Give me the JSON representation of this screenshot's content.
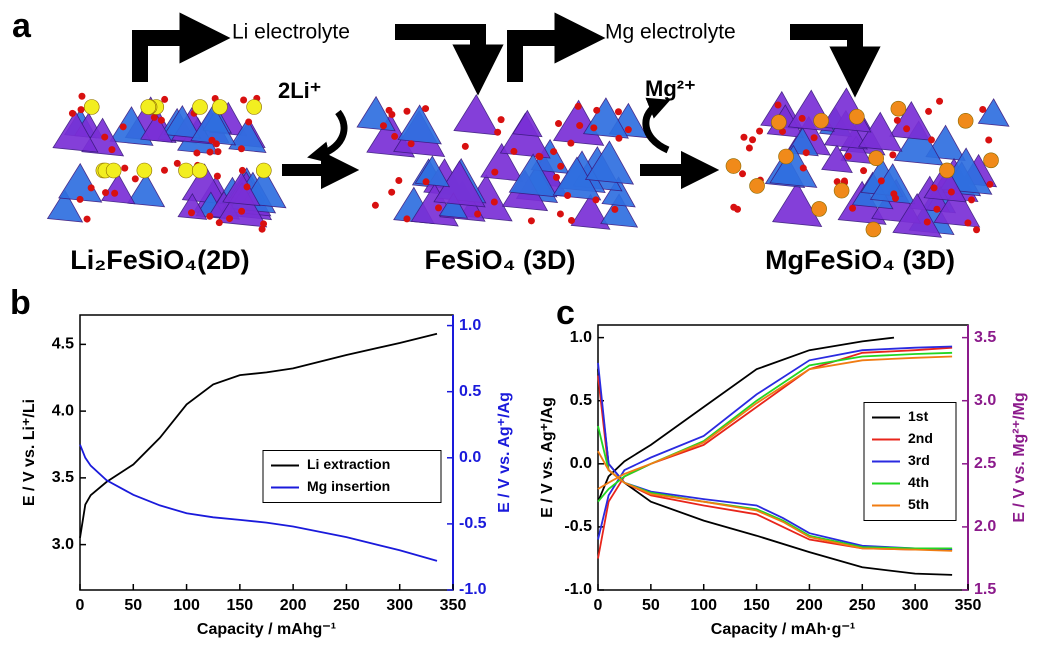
{
  "schematic": {
    "panel_label": "a",
    "top_labels": [
      "Li electrolyte",
      "Mg electrolyte"
    ],
    "ion_labels": [
      "2Li⁺",
      "Mg²⁺"
    ],
    "compounds": [
      "Li₂FeSiO₄(2D)",
      "FeSiO₄ (3D)",
      "MgFeSiO₄ (3D)"
    ]
  },
  "chart_data": [
    {
      "type": "line",
      "panel_label": "b",
      "x_label": "Capacity / mAhg⁻¹",
      "y_label": "E / V vs. Li⁺/Li",
      "y2_label": "E / V vs. Ag⁺/Ag",
      "y2_color": "#1a1adb",
      "xlim": [
        0,
        350
      ],
      "xticks": [
        0,
        50,
        100,
        150,
        200,
        250,
        300,
        350
      ],
      "ylim": [
        2.66,
        4.72
      ],
      "yticks": [
        {
          "value": 3,
          "label": "3.0"
        },
        3.5,
        {
          "value": 4,
          "label": "4.0"
        },
        4.5
      ],
      "y2lim": [
        -1.0,
        1.08
      ],
      "y2ticks": [
        {
          "value": -1,
          "label": "-1.0"
        },
        -0.5,
        {
          "value": 0,
          "label": "0.0"
        },
        0.5,
        {
          "value": 1,
          "label": "1.0"
        }
      ],
      "legend": "center right",
      "grid": false,
      "x": [
        0,
        5,
        10,
        25,
        50,
        75,
        100,
        125,
        150,
        175,
        200,
        250,
        300,
        335
      ],
      "series": [
        {
          "name": "Li extraction",
          "color": "#000000",
          "values": [
            3.05,
            3.3,
            3.37,
            3.47,
            3.6,
            3.8,
            4.05,
            4.2,
            4.27,
            4.29,
            4.32,
            4.42,
            4.51,
            4.58
          ]
        },
        {
          "name": "Mg insertion",
          "color": "#1a1adb",
          "axis": "y2",
          "values": [
            0.1,
            0.0,
            -0.06,
            -0.17,
            -0.28,
            -0.36,
            -0.42,
            -0.45,
            -0.47,
            -0.49,
            -0.52,
            -0.6,
            -0.7,
            -0.78
          ]
        }
      ]
    },
    {
      "type": "line",
      "panel_label": "c",
      "x_label": "Capacity / mAh·g⁻¹",
      "y_label": "E / V vs. Ag⁺/Ag",
      "y2_label": "E / V vs. Mg²⁺/Mg",
      "y2_color": "#8b1a8b",
      "xlim": [
        0,
        350
      ],
      "xticks": [
        0,
        50,
        100,
        150,
        200,
        250,
        300,
        350
      ],
      "ylim": [
        -1.0,
        1.1
      ],
      "yticks": [
        {
          "value": -1,
          "label": "-1.0"
        },
        -0.5,
        {
          "value": 0,
          "label": "0.0"
        },
        0.5,
        {
          "value": 1,
          "label": "1.0"
        }
      ],
      "y2lim": [
        1.5,
        3.6
      ],
      "y2ticks": [
        1.5,
        {
          "value": 2,
          "label": "2.0"
        },
        2.5,
        {
          "value": 3,
          "label": "3.0"
        },
        3.5
      ],
      "legend": "center right",
      "grid": false,
      "series": [
        {
          "name": "1st",
          "color": "#000000",
          "x": [
            0,
            10,
            25,
            50,
            100,
            150,
            200,
            250,
            300,
            335,
            null,
            0,
            10,
            25,
            50,
            100,
            150,
            200,
            250,
            280
          ],
          "values": [
            0.75,
            0.0,
            -0.15,
            -0.3,
            -0.45,
            -0.57,
            -0.7,
            -0.82,
            -0.87,
            -0.88,
            null,
            -0.3,
            -0.1,
            0.02,
            0.15,
            0.45,
            0.75,
            0.9,
            0.97,
            1.0
          ]
        },
        {
          "name": "2nd",
          "color": "#e8251b",
          "x": [
            0,
            10,
            25,
            50,
            100,
            150,
            175,
            200,
            250,
            300,
            335,
            null,
            0,
            10,
            25,
            50,
            100,
            150,
            200,
            250,
            300,
            335
          ],
          "values": [
            0.7,
            -0.05,
            -0.15,
            -0.25,
            -0.33,
            -0.4,
            -0.5,
            -0.6,
            -0.67,
            -0.68,
            -0.68,
            null,
            -0.75,
            -0.3,
            -0.1,
            0.0,
            0.15,
            0.45,
            0.75,
            0.88,
            0.9,
            0.92
          ]
        },
        {
          "name": "3rd",
          "color": "#2a2ae0",
          "x": [
            0,
            10,
            25,
            50,
            100,
            150,
            175,
            200,
            250,
            300,
            335,
            null,
            0,
            10,
            25,
            50,
            100,
            150,
            200,
            250,
            300,
            335
          ],
          "values": [
            0.8,
            0.0,
            -0.15,
            -0.22,
            -0.28,
            -0.33,
            -0.43,
            -0.55,
            -0.65,
            -0.67,
            -0.68,
            null,
            -0.6,
            -0.25,
            -0.05,
            0.05,
            0.22,
            0.55,
            0.82,
            0.9,
            0.92,
            0.93
          ]
        },
        {
          "name": "4th",
          "color": "#22d622",
          "x": [
            0,
            10,
            25,
            50,
            100,
            150,
            175,
            200,
            250,
            300,
            335,
            null,
            0,
            10,
            25,
            50,
            100,
            150,
            200,
            250,
            300,
            335
          ],
          "values": [
            0.3,
            -0.05,
            -0.15,
            -0.23,
            -0.3,
            -0.36,
            -0.45,
            -0.57,
            -0.66,
            -0.67,
            -0.67,
            null,
            -0.3,
            -0.2,
            -0.1,
            0.0,
            0.18,
            0.5,
            0.78,
            0.85,
            0.87,
            0.88
          ]
        },
        {
          "name": "5th",
          "color": "#f07c12",
          "x": [
            0,
            10,
            25,
            50,
            100,
            150,
            175,
            200,
            250,
            300,
            335,
            null,
            0,
            10,
            25,
            50,
            100,
            150,
            200,
            250,
            300,
            335
          ],
          "values": [
            0.1,
            -0.05,
            -0.15,
            -0.24,
            -0.3,
            -0.37,
            -0.46,
            -0.58,
            -0.67,
            -0.68,
            -0.69,
            null,
            -0.2,
            -0.15,
            -0.08,
            0.0,
            0.17,
            0.48,
            0.75,
            0.82,
            0.84,
            0.85
          ]
        }
      ]
    }
  ]
}
